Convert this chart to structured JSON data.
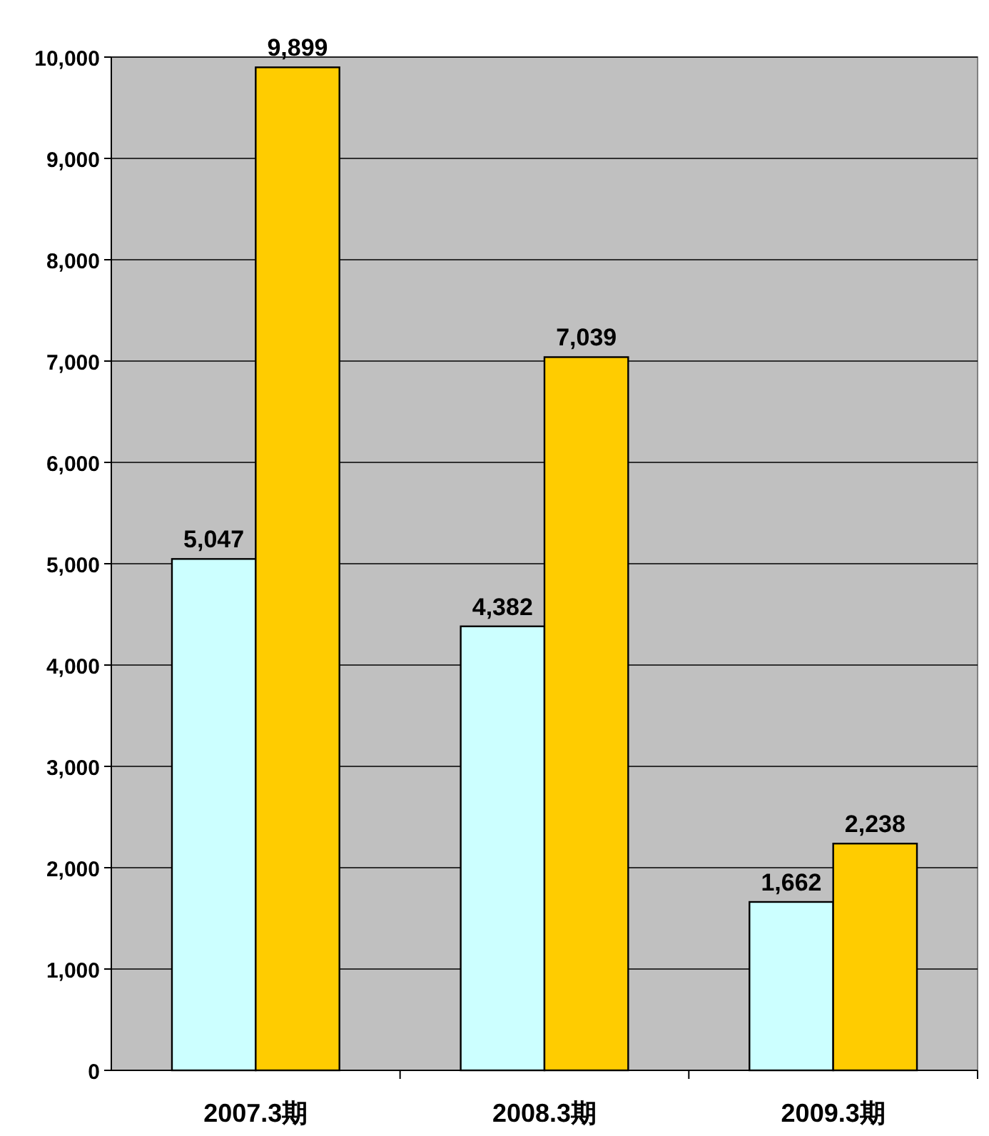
{
  "chart_data": {
    "type": "bar",
    "categories": [
      "2007.3期",
      "2008.3期",
      "2009.3期"
    ],
    "series": [
      {
        "color": "#ccffff",
        "values": [
          5047,
          4382,
          1662
        ],
        "value_labels": [
          "5,047",
          "4,382",
          "1,662"
        ]
      },
      {
        "color": "#ffcc00",
        "values": [
          9899,
          7039,
          2238
        ],
        "value_labels": [
          "9,899",
          "7,039",
          "2,238"
        ]
      }
    ],
    "ylim": [
      0,
      10000
    ],
    "yticks": [
      {
        "value": 0,
        "label": "0"
      },
      {
        "value": 1000,
        "label": "1,000"
      },
      {
        "value": 2000,
        "label": "2,000"
      },
      {
        "value": 3000,
        "label": "3,000"
      },
      {
        "value": 4000,
        "label": "4,000"
      },
      {
        "value": 5000,
        "label": "5,000"
      },
      {
        "value": 6000,
        "label": "6,000"
      },
      {
        "value": 7000,
        "label": "7,000"
      },
      {
        "value": 8000,
        "label": "8,000"
      },
      {
        "value": 9000,
        "label": "9,000"
      },
      {
        "value": 10000,
        "label": "10,000"
      }
    ],
    "grid": "y"
  }
}
